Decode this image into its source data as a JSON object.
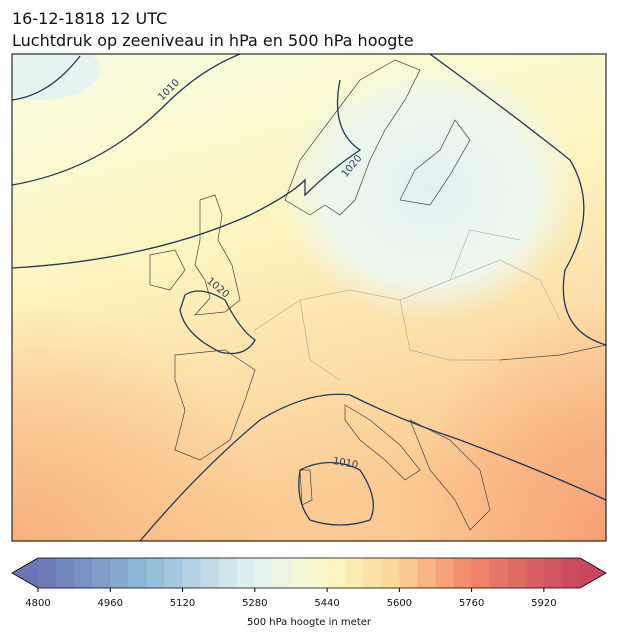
{
  "title": "16-12-1818 12 UTC",
  "subtitle": "Luchtdruk op zeeniveau in hPa en 500 hPa hoogte",
  "contour_labels": [
    "1010",
    "1020",
    "1020",
    "1010"
  ],
  "colorbar": {
    "label": "500 hPa hoogte in meter",
    "lim": [
      4800,
      6000
    ],
    "level_step": 40,
    "ticks": [
      4800,
      4960,
      5120,
      5280,
      5440,
      5600,
      5760,
      5920
    ],
    "stops": [
      [
        4800,
        "#6b74b5"
      ],
      [
        5040,
        "#8fbad8"
      ],
      [
        5280,
        "#e4f3f3"
      ],
      [
        5440,
        "#fcf9c6"
      ],
      [
        5600,
        "#fcd394"
      ],
      [
        5760,
        "#f0866a"
      ],
      [
        6000,
        "#c8465e"
      ]
    ]
  }
}
